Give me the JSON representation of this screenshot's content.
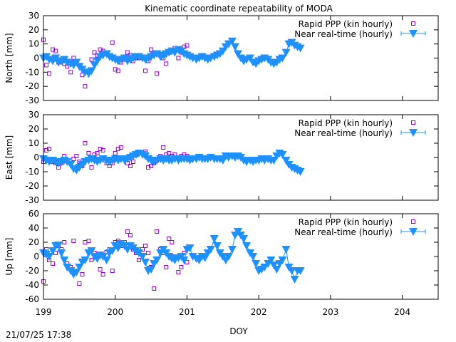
{
  "figure": {
    "title": "Kinematic coordinate repeatability of MODA",
    "xlabel": "DOY",
    "timestamp": "21/07/25 17:38"
  },
  "colors": {
    "rapid": "#9400d3",
    "nrt": "#1e90ff",
    "frame": "#000000"
  },
  "chart_data": [
    {
      "type": "scatter",
      "panel": "north",
      "ylabel": "North [mm]",
      "xlim": [
        199,
        204.5
      ],
      "ylim": [
        -30,
        30
      ],
      "x_ticks": [
        199,
        200,
        201,
        202,
        203,
        204
      ],
      "y_ticks": [
        -30,
        -20,
        -10,
        0,
        10,
        20,
        30
      ],
      "grid": false,
      "legend_position": "top-right",
      "series": [
        {
          "name": "Rapid PPP (kin hourly)",
          "marker": "open-square",
          "x": [
            199.0,
            199.04,
            199.08,
            199.13,
            199.17,
            199.21,
            199.25,
            199.29,
            199.33,
            199.38,
            199.42,
            199.46,
            199.5,
            199.54,
            199.58,
            199.63,
            199.67,
            199.71,
            199.75,
            199.79,
            199.83,
            199.88,
            199.92,
            199.96,
            200.0,
            200.04,
            200.08,
            200.13,
            200.17,
            200.21,
            200.25,
            200.29,
            200.33,
            200.38,
            200.42,
            200.46,
            200.5,
            200.54,
            200.58,
            200.63,
            200.67,
            200.71,
            200.75,
            200.79,
            200.83,
            200.88,
            200.92,
            200.96,
            201.0
          ],
          "y": [
            13,
            -5,
            -11,
            6,
            5,
            -3,
            -2,
            -4,
            -6,
            -10,
            0,
            -3,
            -5,
            -12,
            -20,
            -9,
            -1,
            4,
            2,
            6,
            5,
            3,
            2,
            11,
            -8,
            -9,
            -3,
            -1,
            4,
            2,
            -2,
            0,
            0,
            1,
            -9,
            -2,
            6,
            3,
            -11,
            2,
            0,
            -4,
            4,
            5,
            7,
            0,
            4,
            8,
            9
          ]
        },
        {
          "name": "Near real-time (hourly)",
          "marker": "filled-triangle-down",
          "x": [
            199.0,
            199.04,
            199.08,
            199.13,
            199.17,
            199.21,
            199.25,
            199.29,
            199.33,
            199.38,
            199.42,
            199.46,
            199.5,
            199.54,
            199.58,
            199.63,
            199.67,
            199.71,
            199.75,
            199.79,
            199.83,
            199.88,
            199.92,
            199.96,
            200.0,
            200.04,
            200.08,
            200.13,
            200.17,
            200.21,
            200.25,
            200.29,
            200.33,
            200.38,
            200.42,
            200.46,
            200.5,
            200.54,
            200.58,
            200.63,
            200.67,
            200.71,
            200.75,
            200.79,
            200.83,
            200.88,
            200.92,
            200.96,
            201.0,
            201.04,
            201.08,
            201.13,
            201.17,
            201.21,
            201.25,
            201.29,
            201.33,
            201.38,
            201.42,
            201.46,
            201.5,
            201.54,
            201.58,
            201.63,
            201.67,
            201.71,
            201.75,
            201.79,
            201.83,
            201.88,
            201.92,
            201.96,
            202.0,
            202.04,
            202.08,
            202.13,
            202.17,
            202.21,
            202.25,
            202.29,
            202.33,
            202.38,
            202.42,
            202.46,
            202.5,
            202.54,
            202.58
          ],
          "y": [
            0,
            1,
            -1,
            -2,
            0,
            -3,
            -2,
            -1,
            -3,
            -4,
            -5,
            -3,
            -6,
            -8,
            -10,
            -11,
            -9,
            -5,
            -2,
            1,
            2,
            3,
            1,
            0,
            -1,
            -2,
            -1,
            0,
            -2,
            -1,
            0,
            1,
            1,
            0,
            -1,
            0,
            1,
            2,
            3,
            1,
            2,
            3,
            4,
            5,
            4,
            6,
            5,
            3,
            2,
            1,
            0,
            -1,
            0,
            1,
            0,
            -1,
            0,
            1,
            2,
            3,
            5,
            8,
            10,
            12,
            8,
            3,
            0,
            -2,
            -1,
            0,
            -3,
            -4,
            -2,
            -1,
            0,
            -1,
            -3,
            -4,
            -3,
            -1,
            0,
            4,
            10,
            11,
            9,
            8,
            7
          ]
        }
      ]
    },
    {
      "type": "scatter",
      "panel": "east",
      "ylabel": "East [mm]",
      "xlim": [
        199,
        204.5
      ],
      "ylim": [
        -30,
        30
      ],
      "x_ticks": [
        199,
        200,
        201,
        202,
        203,
        204
      ],
      "y_ticks": [
        -30,
        -20,
        -10,
        0,
        10,
        20,
        30
      ],
      "grid": false,
      "legend_position": "top-right",
      "series": [
        {
          "name": "Rapid PPP (kin hourly)",
          "marker": "open-square",
          "x": [
            199.0,
            199.04,
            199.08,
            199.13,
            199.17,
            199.21,
            199.25,
            199.29,
            199.33,
            199.38,
            199.42,
            199.46,
            199.5,
            199.54,
            199.58,
            199.63,
            199.67,
            199.71,
            199.75,
            199.79,
            199.83,
            199.88,
            199.92,
            199.96,
            200.0,
            200.04,
            200.08,
            200.13,
            200.17,
            200.21,
            200.25,
            200.29,
            200.33,
            200.38,
            200.42,
            200.46,
            200.5,
            200.54,
            200.58,
            200.63,
            200.67,
            200.71,
            200.75,
            200.79,
            200.83,
            200.88,
            200.92,
            200.96,
            201.0
          ],
          "y": [
            -3,
            5,
            6,
            -3,
            -4,
            -7,
            -4,
            1,
            -2,
            -4,
            -1,
            1,
            -3,
            -6,
            10,
            3,
            -7,
            2,
            3,
            6,
            5,
            -4,
            -6,
            -4,
            3,
            6,
            7,
            -1,
            -4,
            -6,
            -3,
            2,
            4,
            3,
            4,
            -7,
            -6,
            -4,
            -2,
            1,
            7,
            2,
            3,
            1,
            2,
            0,
            1,
            2,
            1
          ]
        },
        {
          "name": "Near real-time (hourly)",
          "marker": "filled-triangle-down",
          "x": [
            199.0,
            199.04,
            199.08,
            199.13,
            199.17,
            199.21,
            199.25,
            199.29,
            199.33,
            199.38,
            199.42,
            199.46,
            199.5,
            199.54,
            199.58,
            199.63,
            199.67,
            199.71,
            199.75,
            199.79,
            199.83,
            199.88,
            199.92,
            199.96,
            200.0,
            200.04,
            200.08,
            200.13,
            200.17,
            200.21,
            200.25,
            200.29,
            200.33,
            200.38,
            200.42,
            200.46,
            200.5,
            200.54,
            200.58,
            200.63,
            200.67,
            200.71,
            200.75,
            200.79,
            200.83,
            200.88,
            200.92,
            200.96,
            201.0,
            201.04,
            201.08,
            201.13,
            201.17,
            201.21,
            201.25,
            201.29,
            201.33,
            201.38,
            201.42,
            201.46,
            201.5,
            201.54,
            201.58,
            201.63,
            201.67,
            201.71,
            201.75,
            201.79,
            201.83,
            201.88,
            201.92,
            201.96,
            202.0,
            202.04,
            202.08,
            202.13,
            202.17,
            202.21,
            202.25,
            202.29,
            202.33,
            202.38,
            202.42,
            202.46,
            202.5,
            202.54,
            202.58
          ],
          "y": [
            -1,
            -2,
            -3,
            -2,
            -3,
            -4,
            -3,
            -2,
            -3,
            -5,
            -8,
            -9,
            -7,
            -5,
            -3,
            -2,
            -1,
            -2,
            -3,
            -2,
            -1,
            -2,
            -3,
            -2,
            -1,
            -2,
            -1,
            -2,
            -1,
            0,
            1,
            2,
            3,
            2,
            1,
            -1,
            -2,
            -3,
            -2,
            -1,
            -2,
            -1,
            -2,
            -2,
            -1,
            -2,
            -1,
            -1,
            -1,
            -2,
            -1,
            -1,
            0,
            -1,
            -1,
            -1,
            0,
            -1,
            -1,
            -1,
            -2,
            1,
            0,
            1,
            0,
            1,
            0,
            -2,
            -3,
            -2,
            -3,
            -2,
            -2,
            -1,
            -2,
            -1,
            -2,
            -2,
            1,
            3,
            2,
            -2,
            -5,
            -7,
            -8,
            -9,
            -10
          ]
        }
      ]
    },
    {
      "type": "scatter",
      "panel": "up",
      "ylabel": "Up [mm]",
      "xlim": [
        199,
        204.5
      ],
      "ylim": [
        -60,
        60
      ],
      "x_ticks": [
        199,
        200,
        201,
        202,
        203,
        204
      ],
      "y_ticks": [
        -60,
        -40,
        -20,
        0,
        20,
        40,
        60
      ],
      "grid": false,
      "legend_position": "top-right",
      "series": [
        {
          "name": "Rapid PPP (kin hourly)",
          "marker": "open-square",
          "x": [
            199.0,
            199.04,
            199.08,
            199.13,
            199.17,
            199.21,
            199.25,
            199.29,
            199.33,
            199.38,
            199.42,
            199.46,
            199.5,
            199.54,
            199.58,
            199.63,
            199.67,
            199.71,
            199.75,
            199.79,
            199.83,
            199.88,
            199.92,
            199.96,
            200.0,
            200.04,
            200.08,
            200.13,
            200.17,
            200.21,
            200.25,
            200.29,
            200.33,
            200.38,
            200.42,
            200.46,
            200.5,
            200.54,
            200.58,
            200.63,
            200.67,
            200.71,
            200.75,
            200.79,
            200.83,
            200.88,
            200.92,
            200.96,
            201.0
          ],
          "y": [
            -35,
            10,
            -5,
            -10,
            5,
            15,
            10,
            20,
            -10,
            -15,
            22,
            -20,
            -38,
            -25,
            20,
            22,
            -5,
            5,
            0,
            -18,
            -25,
            6,
            10,
            -20,
            20,
            22,
            15,
            20,
            35,
            30,
            10,
            5,
            -5,
            10,
            15,
            5,
            -15,
            -45,
            35,
            10,
            5,
            -15,
            25,
            20,
            0,
            -22,
            -15,
            5,
            -8
          ]
        },
        {
          "name": "Near real-time (hourly)",
          "marker": "filled-triangle-down",
          "x": [
            199.0,
            199.04,
            199.08,
            199.13,
            199.17,
            199.21,
            199.25,
            199.29,
            199.33,
            199.38,
            199.42,
            199.46,
            199.5,
            199.54,
            199.58,
            199.63,
            199.67,
            199.71,
            199.75,
            199.79,
            199.83,
            199.88,
            199.92,
            199.96,
            200.0,
            200.04,
            200.08,
            200.13,
            200.17,
            200.21,
            200.25,
            200.29,
            200.33,
            200.38,
            200.42,
            200.46,
            200.5,
            200.54,
            200.58,
            200.63,
            200.67,
            200.71,
            200.75,
            200.79,
            200.83,
            200.88,
            200.92,
            200.96,
            201.0,
            201.04,
            201.08,
            201.13,
            201.17,
            201.21,
            201.25,
            201.29,
            201.33,
            201.38,
            201.42,
            201.46,
            201.5,
            201.54,
            201.58,
            201.63,
            201.67,
            201.71,
            201.75,
            201.79,
            201.83,
            201.88,
            201.92,
            201.96,
            202.0,
            202.04,
            202.08,
            202.13,
            202.17,
            202.21,
            202.25,
            202.29,
            202.33,
            202.38,
            202.42,
            202.46,
            202.5,
            202.54,
            202.58
          ],
          "y": [
            5,
            3,
            0,
            8,
            15,
            16,
            5,
            -5,
            -15,
            -20,
            -25,
            -22,
            -15,
            -8,
            -5,
            5,
            8,
            0,
            -3,
            2,
            0,
            -5,
            5,
            8,
            15,
            12,
            18,
            15,
            10,
            15,
            12,
            8,
            5,
            0,
            -8,
            -20,
            -18,
            -10,
            -5,
            5,
            10,
            5,
            0,
            -3,
            -5,
            -2,
            0,
            -5,
            10,
            12,
            0,
            -3,
            -5,
            0,
            -2,
            5,
            10,
            25,
            15,
            5,
            0,
            -5,
            0,
            10,
            30,
            35,
            30,
            25,
            15,
            5,
            0,
            -10,
            -20,
            -18,
            -15,
            -10,
            -5,
            -12,
            -18,
            -10,
            -5,
            10,
            -15,
            -20,
            -32,
            -20,
            -20
          ]
        }
      ]
    }
  ]
}
